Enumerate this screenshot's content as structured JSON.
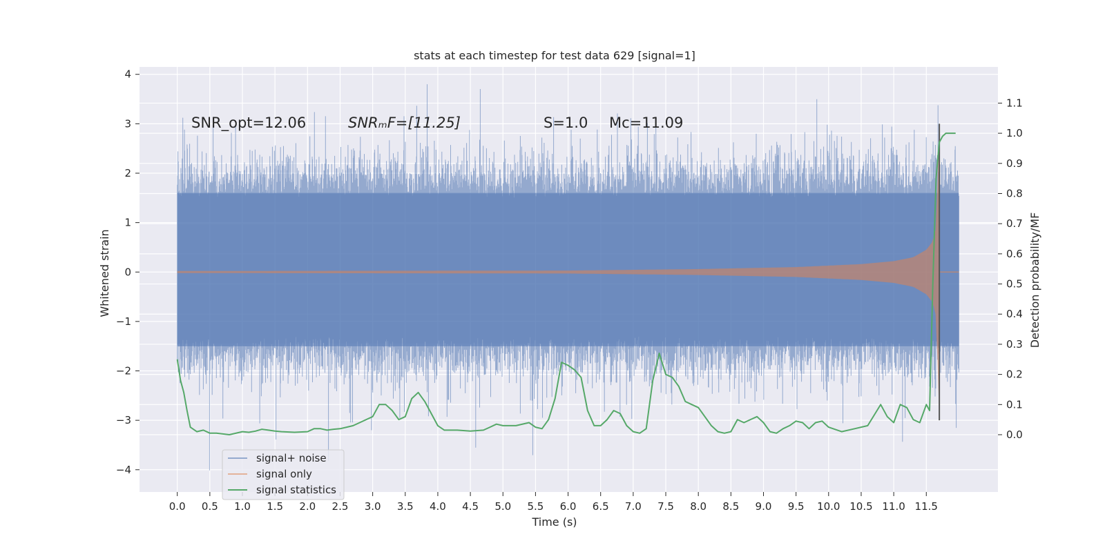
{
  "chart_data": {
    "type": "line",
    "title": "stats at each timestep for test data 629 [signal=1]",
    "xlabel": "Time (s)",
    "ylabel": "Whitened strain",
    "ylabel_right": "Detection probability/MF",
    "xlim": [
      -0.58,
      12.6
    ],
    "ylim": [
      -4.45,
      4.15
    ],
    "ylim_right": [
      -0.19,
      1.22
    ],
    "x_ticks": [
      0.0,
      0.5,
      1.0,
      1.5,
      2.0,
      2.5,
      3.0,
      3.5,
      4.0,
      4.5,
      5.0,
      5.5,
      6.0,
      6.5,
      7.0,
      7.5,
      8.0,
      8.5,
      9.0,
      9.5,
      10.0,
      10.5,
      11.0,
      11.5
    ],
    "x_tick_labels": [
      "0.0",
      "0.5",
      "1.0",
      "1.5",
      "2.0",
      "2.5",
      "3.0",
      "3.5",
      "4.0",
      "4.5",
      "5.0",
      "5.5",
      "6.0",
      "6.5",
      "7.0",
      "7.5",
      "8.0",
      "8.5",
      "9.0",
      "9.5",
      "10.0",
      "10.5",
      "11.0",
      "11.5"
    ],
    "y_ticks": [
      -4,
      -3,
      -2,
      -1,
      0,
      1,
      2,
      3,
      4
    ],
    "y_tick_labels": [
      "−4",
      "−3",
      "−2",
      "−1",
      "0",
      "1",
      "2",
      "3",
      "4"
    ],
    "y_ticks_right": [
      0.0,
      0.1,
      0.2,
      0.3,
      0.4,
      0.5,
      0.6,
      0.7,
      0.8,
      0.9,
      1.0,
      1.1
    ],
    "y_tick_labels_right": [
      "0.0",
      "0.1",
      "0.2",
      "0.3",
      "0.4",
      "0.5",
      "0.6",
      "0.7",
      "0.8",
      "0.9",
      "1.0",
      "1.1"
    ],
    "grid": true,
    "legend_position": "bottom-left",
    "annotations": [
      {
        "label": "SNR_opt=12.06",
        "x": 0.2,
        "y": 3.0
      },
      {
        "label": "SNRₘF=[11.25]",
        "x": 2.6,
        "y": 3.0
      },
      {
        "label": "S=1.0",
        "x": 5.6,
        "y": 3.0
      },
      {
        "label": "Mᴄ=11.09",
        "x": 6.6,
        "y": 3.0
      }
    ],
    "series": [
      {
        "name": "signal+ noise",
        "color": "#4c72b0",
        "axis": "left",
        "style": "noise",
        "t_start": 0.0,
        "t_end": 12.0,
        "typical_range": [
          -2.0,
          2.3
        ],
        "extreme_range": [
          -4.1,
          3.8
        ]
      },
      {
        "name": "signal only",
        "color": "#dd8452",
        "axis": "left",
        "style": "chirp",
        "t_start": 0.0,
        "t_end": 12.0,
        "merger_time": 11.7,
        "peak_amplitude": 3.0,
        "envelope_t": [
          0.0,
          6.0,
          8.0,
          9.5,
          10.5,
          11.0,
          11.3,
          11.5,
          11.6,
          11.65,
          11.7,
          11.75,
          12.0
        ],
        "envelope_a": [
          0.02,
          0.03,
          0.06,
          0.1,
          0.16,
          0.22,
          0.3,
          0.45,
          0.62,
          0.9,
          3.0,
          0.05,
          0.03
        ]
      },
      {
        "name": "signal statistics",
        "color": "#55a868",
        "axis": "right",
        "style": "line",
        "x": [
          0.0,
          0.05,
          0.1,
          0.15,
          0.2,
          0.3,
          0.4,
          0.5,
          0.6,
          0.8,
          1.0,
          1.1,
          1.2,
          1.3,
          1.4,
          1.5,
          1.6,
          1.8,
          2.0,
          2.1,
          2.2,
          2.3,
          2.4,
          2.5,
          2.6,
          2.7,
          2.8,
          2.9,
          3.0,
          3.1,
          3.2,
          3.3,
          3.4,
          3.5,
          3.6,
          3.7,
          3.8,
          3.9,
          4.0,
          4.1,
          4.3,
          4.5,
          4.7,
          4.8,
          4.9,
          5.0,
          5.2,
          5.4,
          5.5,
          5.6,
          5.7,
          5.8,
          5.9,
          6.0,
          6.1,
          6.2,
          6.3,
          6.4,
          6.5,
          6.6,
          6.7,
          6.8,
          6.9,
          7.0,
          7.1,
          7.2,
          7.3,
          7.4,
          7.5,
          7.6,
          7.7,
          7.8,
          7.9,
          8.0,
          8.1,
          8.2,
          8.3,
          8.4,
          8.5,
          8.6,
          8.7,
          8.8,
          8.9,
          9.0,
          9.1,
          9.2,
          9.3,
          9.4,
          9.5,
          9.6,
          9.7,
          9.8,
          9.9,
          10.0,
          10.2,
          10.4,
          10.6,
          10.8,
          10.9,
          11.0,
          11.1,
          11.2,
          11.3,
          11.4,
          11.5,
          11.55,
          11.6,
          11.65,
          11.7,
          11.75,
          11.8,
          11.85,
          11.9,
          11.95
        ],
        "y": [
          0.25,
          0.18,
          0.14,
          0.08,
          0.025,
          0.01,
          0.015,
          0.005,
          0.005,
          0.0,
          0.01,
          0.008,
          0.012,
          0.018,
          0.015,
          0.012,
          0.01,
          0.008,
          0.01,
          0.02,
          0.02,
          0.015,
          0.018,
          0.02,
          0.025,
          0.03,
          0.04,
          0.05,
          0.06,
          0.1,
          0.1,
          0.08,
          0.05,
          0.06,
          0.12,
          0.14,
          0.11,
          0.07,
          0.03,
          0.015,
          0.015,
          0.012,
          0.015,
          0.025,
          0.035,
          0.03,
          0.03,
          0.04,
          0.025,
          0.02,
          0.05,
          0.12,
          0.24,
          0.23,
          0.215,
          0.19,
          0.08,
          0.03,
          0.03,
          0.05,
          0.08,
          0.07,
          0.03,
          0.01,
          0.005,
          0.02,
          0.18,
          0.27,
          0.2,
          0.19,
          0.16,
          0.11,
          0.1,
          0.09,
          0.06,
          0.03,
          0.01,
          0.005,
          0.01,
          0.05,
          0.04,
          0.05,
          0.06,
          0.04,
          0.01,
          0.005,
          0.02,
          0.03,
          0.045,
          0.04,
          0.02,
          0.04,
          0.045,
          0.025,
          0.01,
          0.02,
          0.03,
          0.1,
          0.06,
          0.04,
          0.1,
          0.09,
          0.05,
          0.04,
          0.1,
          0.08,
          0.5,
          0.85,
          0.97,
          0.99,
          1.0,
          1.0,
          1.0,
          1.0
        ]
      }
    ]
  }
}
